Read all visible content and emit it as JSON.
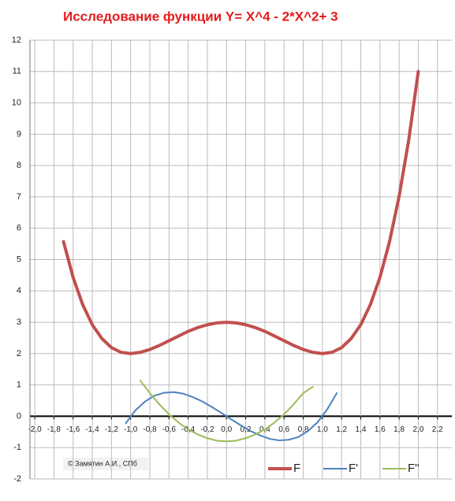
{
  "chart_data": {
    "type": "line",
    "title": "Исследование функции Y= X^4 - 2*X^2+ 3",
    "annotation": "© Замятин А.И., СПб",
    "xlim": [
      -2.05,
      2.35
    ],
    "xticks": [
      {
        "value": -2.0,
        "label": "-2,0"
      },
      {
        "value": -1.8,
        "label": "-1,8"
      },
      {
        "value": -1.6,
        "label": "-1,6"
      },
      {
        "value": -1.4,
        "label": "-1,4"
      },
      {
        "value": -1.2,
        "label": "-1,2"
      },
      {
        "value": -1.0,
        "label": "-1,0"
      },
      {
        "value": -0.8,
        "label": "-0,8"
      },
      {
        "value": -0.6,
        "label": "-0,6"
      },
      {
        "value": -0.4,
        "label": "-0,4"
      },
      {
        "value": -0.2,
        "label": "-0,2"
      },
      {
        "value": 0,
        "label": "0,0"
      },
      {
        "value": 0.2,
        "label": "0,2"
      },
      {
        "value": 0.4,
        "label": "0,4"
      },
      {
        "value": 0.6,
        "label": "0,6"
      },
      {
        "value": 0.8,
        "label": "0,8"
      },
      {
        "value": 1.0,
        "label": "1,0"
      },
      {
        "value": 1.2,
        "label": "1,2"
      },
      {
        "value": 1.4,
        "label": "1,4"
      },
      {
        "value": 1.6,
        "label": "1,6"
      },
      {
        "value": 1.8,
        "label": "1,8"
      },
      {
        "value": 2.0,
        "label": "2,0"
      },
      {
        "value": 2.2,
        "label": "2,2"
      }
    ],
    "ylim": [
      -2,
      12
    ],
    "yticks": [
      -2,
      -1,
      0,
      1,
      2,
      3,
      4,
      5,
      6,
      7,
      8,
      9,
      10,
      11,
      12
    ],
    "grid": true,
    "legend": "bottom",
    "series": [
      {
        "name": "F",
        "color": "#c0504d",
        "width": 4,
        "x": [
          -1.7,
          -1.6,
          -1.5,
          -1.4,
          -1.3,
          -1.2,
          -1.1,
          -1.0,
          -0.9,
          -0.8,
          -0.7,
          -0.6,
          -0.5,
          -0.4,
          -0.3,
          -0.2,
          -0.1,
          0,
          0.1,
          0.2,
          0.3,
          0.4,
          0.5,
          0.6,
          0.7,
          0.8,
          0.9,
          1.0,
          1.1,
          1.2,
          1.3,
          1.4,
          1.5,
          1.6,
          1.7,
          1.8,
          1.9,
          2.0
        ],
        "values": [
          5.57,
          4.43,
          3.56,
          2.92,
          2.48,
          2.19,
          2.04,
          2,
          2.04,
          2.13,
          2.26,
          2.41,
          2.56,
          2.71,
          2.83,
          2.92,
          2.98,
          3,
          2.98,
          2.92,
          2.83,
          2.71,
          2.56,
          2.41,
          2.26,
          2.13,
          2.04,
          2,
          2.04,
          2.19,
          2.48,
          2.92,
          3.56,
          4.43,
          5.57,
          7.02,
          8.81,
          11
        ]
      },
      {
        "name": "F'",
        "color": "#4f81bd",
        "width": 2,
        "x": [
          -1.05,
          -0.95,
          -0.85,
          -0.75,
          -0.65,
          -0.55,
          -0.45,
          -0.35,
          -0.25,
          -0.15,
          -0.05,
          0.05,
          0.15,
          0.25,
          0.35,
          0.45,
          0.55,
          0.65,
          0.75,
          0.85,
          0.95,
          1.05,
          1.15
        ],
        "values": [
          -0.22,
          0.19,
          0.47,
          0.66,
          0.75,
          0.77,
          0.72,
          0.61,
          0.47,
          0.29,
          0.1,
          -0.1,
          -0.29,
          -0.47,
          -0.61,
          -0.72,
          -0.77,
          -0.75,
          -0.66,
          -0.47,
          -0.19,
          0.22,
          0.74
        ]
      },
      {
        "name": "F''",
        "color": "#9bbb59",
        "width": 2,
        "x": [
          -0.9,
          -0.8,
          -0.7,
          -0.6,
          -0.5,
          -0.4,
          -0.3,
          -0.2,
          -0.1,
          0,
          0.1,
          0.2,
          0.3,
          0.4,
          0.5,
          0.6,
          0.7,
          0.8,
          0.9
        ],
        "values": [
          1.14,
          0.74,
          0.38,
          0.06,
          -0.2,
          -0.42,
          -0.58,
          -0.7,
          -0.78,
          -0.8,
          -0.78,
          -0.7,
          -0.58,
          -0.42,
          -0.2,
          0.06,
          0.38,
          0.74,
          0.94
        ]
      }
    ]
  }
}
